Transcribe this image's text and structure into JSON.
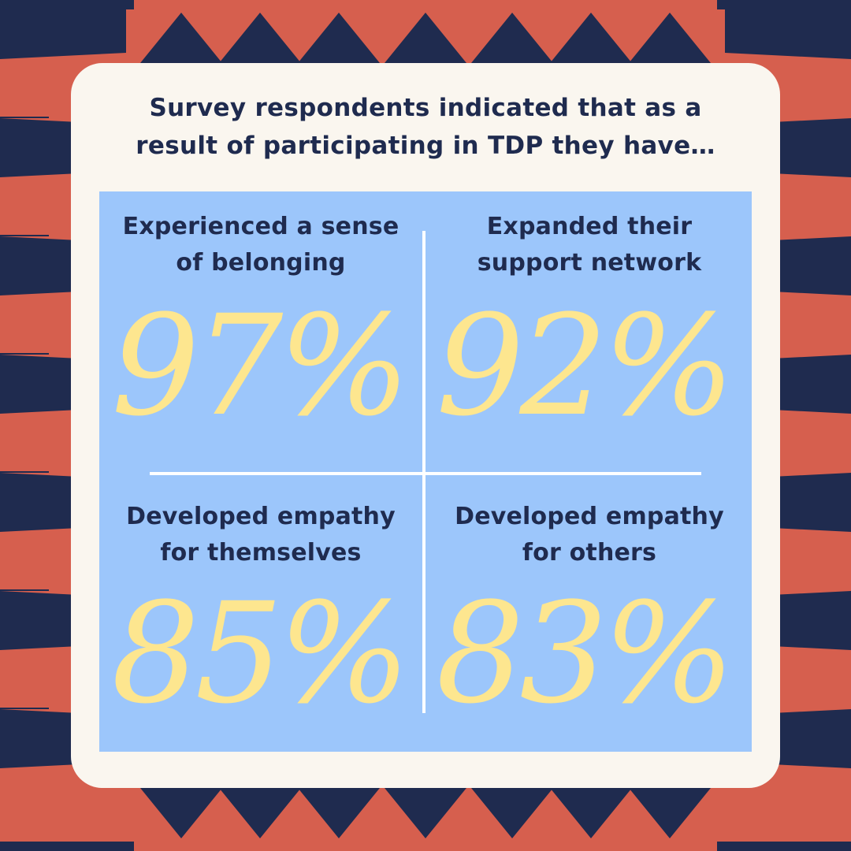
{
  "colors": {
    "navy": "#1f2b4f",
    "coral": "#d65f4e",
    "card_bg": "#faf6ef",
    "panel_bg": "#9cc6fb",
    "percent_yellow": "#fde68f",
    "divider": "#ffffff",
    "text_navy": "#1f2b4f"
  },
  "headline": {
    "line1": "Survey respondents indicated that as a",
    "line2": "result of participating in TDP they have…"
  },
  "stats": [
    {
      "line1": "Experienced a sense",
      "line2": "of belonging",
      "value": "97%"
    },
    {
      "line1": "Expanded their",
      "line2": "support network",
      "value": "92%"
    },
    {
      "line1": "Developed empathy",
      "line2": "for themselves",
      "value": "85%"
    },
    {
      "line1": "Developed empathy",
      "line2": "for others",
      "value": "83%"
    }
  ]
}
